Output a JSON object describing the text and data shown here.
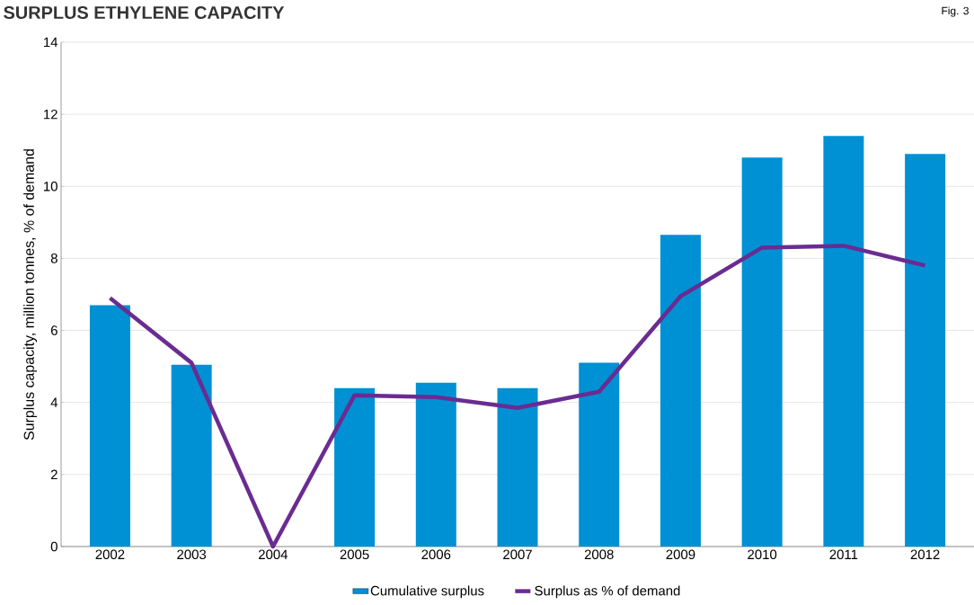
{
  "chart_data": {
    "type": "bar",
    "title": "SURPLUS ETHYLENE CAPACITY",
    "ylabel": "Surplus capacity, million tonnes, % of demand",
    "annotations": [
      "Fig. 3"
    ],
    "categories": [
      "2002",
      "2003",
      "2004",
      "2005",
      "2006",
      "2007",
      "2008",
      "2009",
      "2010",
      "2011",
      "2012"
    ],
    "series": [
      {
        "name": "Cumulative surplus",
        "color": "#0090d4",
        "values": [
          6.7,
          5.05,
          0,
          4.4,
          4.55,
          4.4,
          5.1,
          8.65,
          10.8,
          11.4,
          10.9
        ]
      },
      {
        "name": "Surplus as % of demand",
        "type": "line",
        "color": "#6a2c91",
        "values": [
          6.9,
          5.1,
          0,
          4.2,
          4.15,
          3.85,
          4.3,
          6.95,
          8.3,
          8.35,
          7.8
        ]
      }
    ],
    "ylim": [
      0,
      14
    ],
    "yticks": [
      0,
      2,
      4,
      6,
      8,
      10,
      12,
      14
    ],
    "grid": "y",
    "legend": "bottom",
    "marker": "none",
    "line_style": "solid"
  }
}
